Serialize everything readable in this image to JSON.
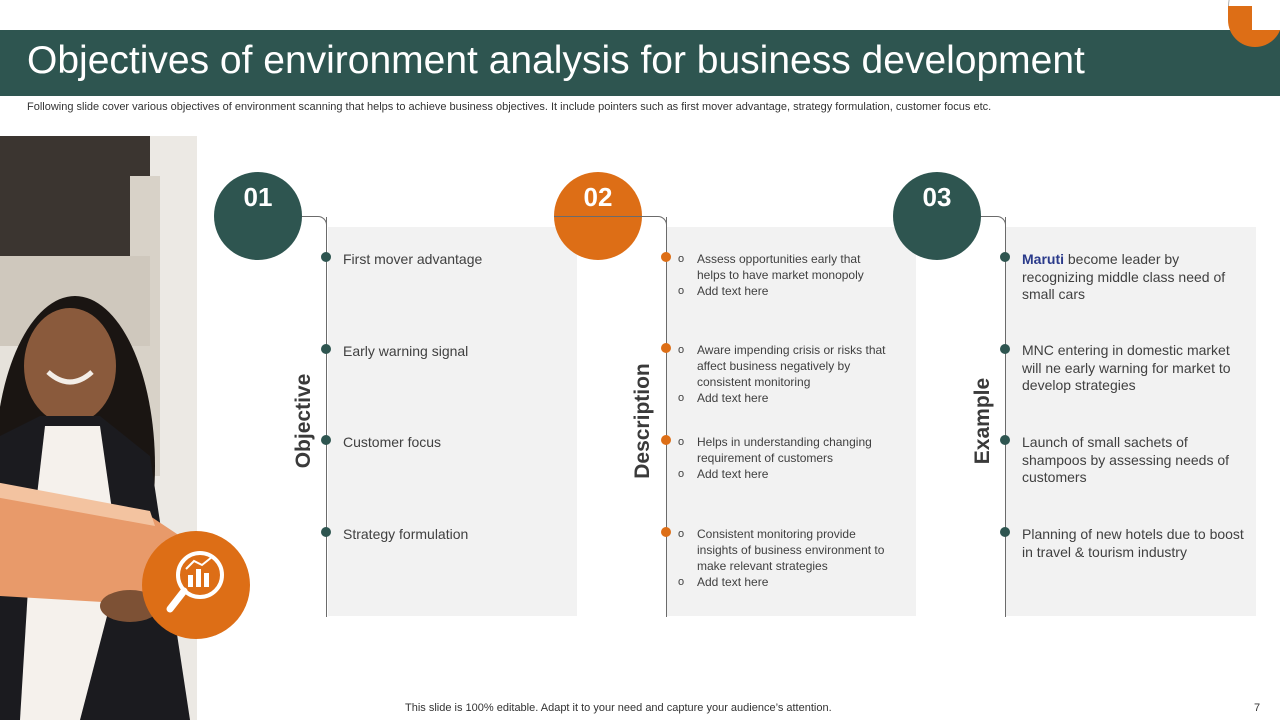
{
  "slide": {
    "title": "Objectives of environment analysis for business development",
    "subtitle": "Following slide cover various objectives of environment scanning that helps to achieve business objectives. It include pointers such as first mover advantage, strategy formulation, customer focus etc.",
    "footer": "This slide is 100% editable. Adapt it to your need and capture your audience’s attention.",
    "page_number": "7"
  },
  "colors": {
    "teal": "#2e5550",
    "orange": "#dd6e16",
    "panel": "#f2f2f2"
  },
  "icons": {
    "photo_icon": "magnifier-chart-icon"
  },
  "columns": [
    {
      "number": "01",
      "label": "Objective",
      "items": [
        "First mover advantage",
        "Early warning signal",
        "Customer focus",
        "Strategy formulation"
      ]
    },
    {
      "number": "02",
      "label": "Description",
      "groups": [
        {
          "lines": [
            "Assess opportunities early that",
            "helps to have market monopoly"
          ],
          "extra": "Add text here"
        },
        {
          "lines": [
            "Aware impending crisis or risks that",
            "affect business negatively by",
            "consistent monitoring"
          ],
          "extra": "Add text here"
        },
        {
          "lines": [
            "Helps in understanding changing",
            "requirement of customers"
          ],
          "extra": "Add text here"
        },
        {
          "lines": [
            "Consistent monitoring provide",
            "insights of business environment to",
            "make relevant strategies"
          ],
          "extra": "Add text here"
        }
      ]
    },
    {
      "number": "03",
      "label": "Example",
      "first_brand": "Maruti",
      "first_rest": " become leader by recognizing middle class need of small cars",
      "items": [
        "MNC entering in domestic market will ne early warning for market to develop strategies",
        "Launch of small sachets of shampoos by assessing needs of customers",
        "Planning of new hotels due to boost in travel & tourism industry"
      ]
    }
  ]
}
